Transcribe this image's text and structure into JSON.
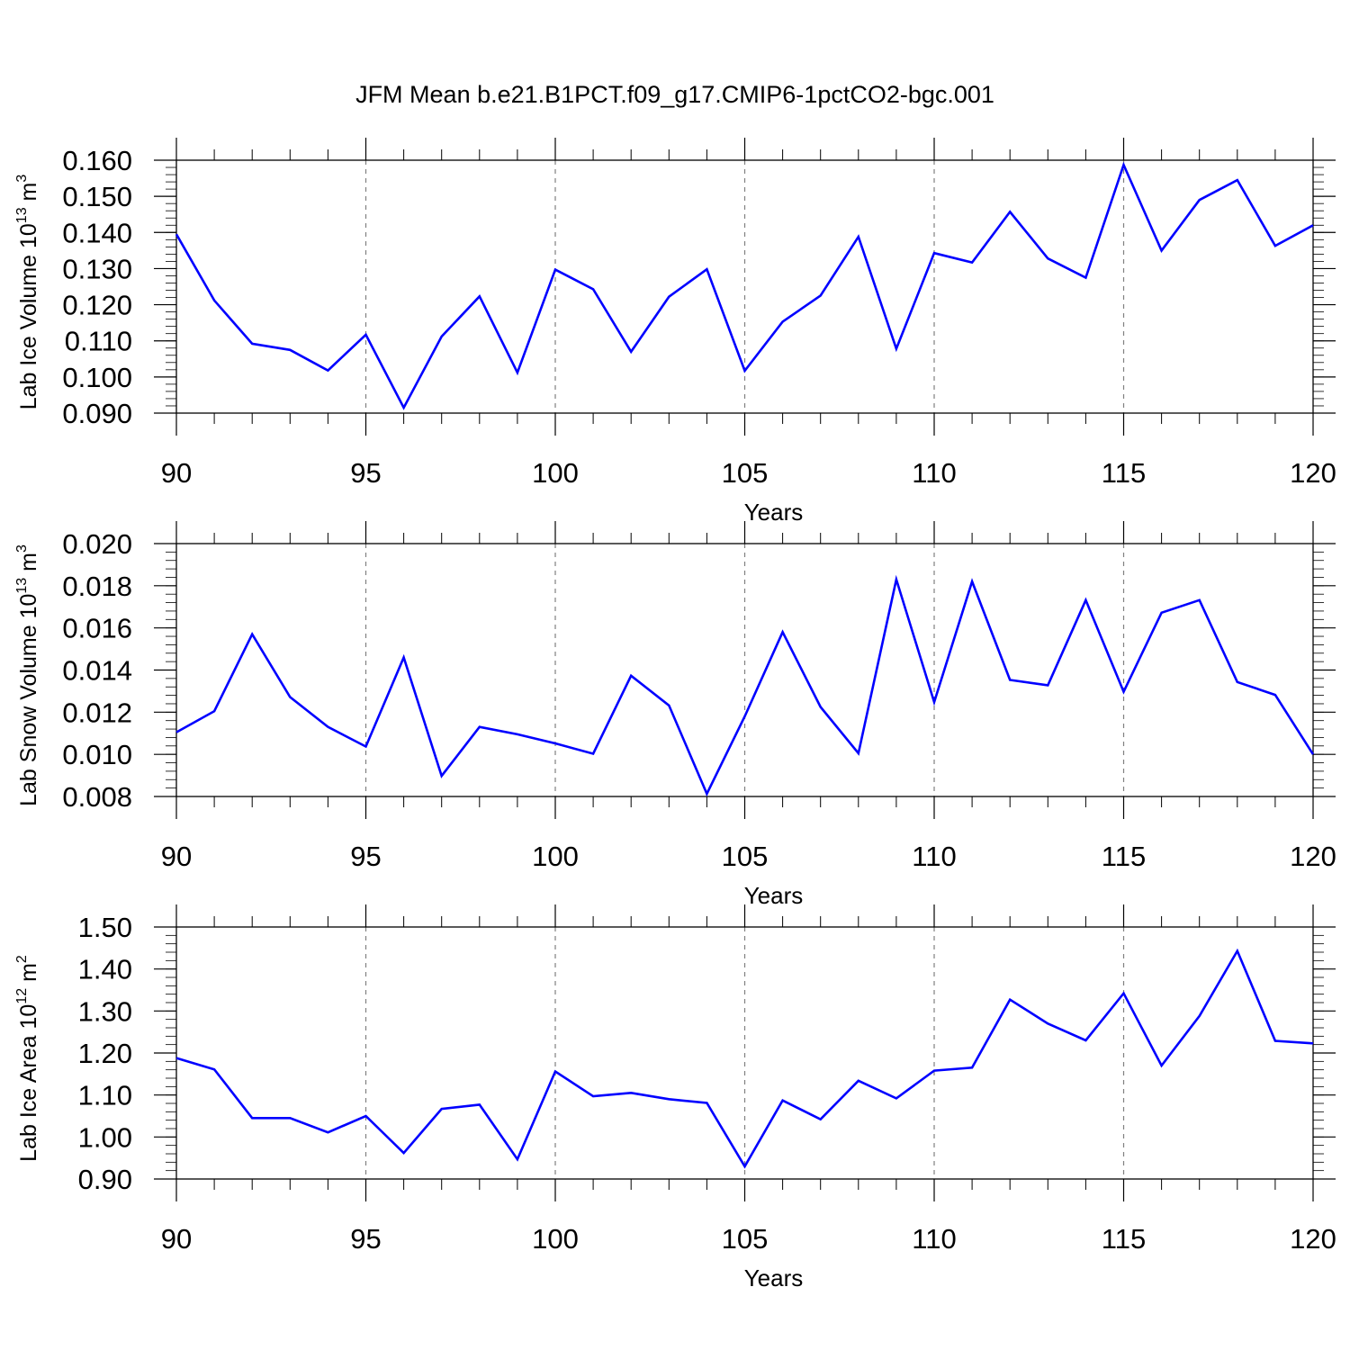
{
  "title": "JFM Mean b.e21.B1PCT.f09_g17.CMIP6-1pctCO2-bgc.001",
  "colors": {
    "series": "#0000ff",
    "axes": "#000000",
    "grid": "#808080",
    "background": "#ffffff"
  },
  "chart_data": [
    {
      "type": "line",
      "title": "",
      "xlabel": "Years",
      "ylabel": {
        "text": "Lab Ice Volume 10",
        "sup": "13",
        "unit": " m",
        "unit_sup": "3"
      },
      "xlim": [
        90,
        120
      ],
      "ylim": [
        0.09,
        0.16
      ],
      "x_ticks": [
        90,
        95,
        100,
        105,
        110,
        115,
        120
      ],
      "x_tick_labels": [
        "90",
        "95",
        "100",
        "105",
        "110",
        "115",
        "120"
      ],
      "y_ticks": [
        0.09,
        0.1,
        0.11,
        0.12,
        0.13,
        0.14,
        0.15,
        0.16
      ],
      "y_tick_labels": [
        "0.090",
        "0.100",
        "0.110",
        "0.120",
        "0.130",
        "0.140",
        "0.150",
        "0.160"
      ],
      "y_minor_step": 0.002,
      "grid": "vertical dashed at major x ticks",
      "x": [
        90,
        91,
        92,
        93,
        94,
        95,
        96,
        97,
        98,
        99,
        100,
        101,
        102,
        103,
        104,
        105,
        106,
        107,
        108,
        109,
        110,
        111,
        112,
        113,
        114,
        115,
        116,
        117,
        118,
        119,
        120
      ],
      "series": [
        {
          "name": "Lab Ice Volume",
          "values": [
            0.1395,
            0.1212,
            0.1092,
            0.1075,
            0.1018,
            0.1117,
            0.0915,
            0.1112,
            0.1223,
            0.1012,
            0.1297,
            0.1243,
            0.107,
            0.1222,
            0.1298,
            0.1017,
            0.1153,
            0.1225,
            0.1388,
            0.1078,
            0.1343,
            0.1317,
            0.1457,
            0.1328,
            0.1275,
            0.1587,
            0.135,
            0.149,
            0.1545,
            0.1363,
            0.142
          ]
        }
      ]
    },
    {
      "type": "line",
      "title": "",
      "xlabel": "Years",
      "ylabel": {
        "text": "Lab Snow Volume 10",
        "sup": "13",
        "unit": " m",
        "unit_sup": "3"
      },
      "xlim": [
        90,
        120
      ],
      "ylim": [
        0.008,
        0.02
      ],
      "x_ticks": [
        90,
        95,
        100,
        105,
        110,
        115,
        120
      ],
      "x_tick_labels": [
        "90",
        "95",
        "100",
        "105",
        "110",
        "115",
        "120"
      ],
      "y_ticks": [
        0.008,
        0.01,
        0.012,
        0.014,
        0.016,
        0.018,
        0.02
      ],
      "y_tick_labels": [
        "0.008",
        "0.010",
        "0.012",
        "0.014",
        "0.016",
        "0.018",
        "0.020"
      ],
      "y_minor_step": 0.0004,
      "grid": "vertical dashed at major x ticks",
      "x": [
        90,
        91,
        92,
        93,
        94,
        95,
        96,
        97,
        98,
        99,
        100,
        101,
        102,
        103,
        104,
        105,
        106,
        107,
        108,
        109,
        110,
        111,
        112,
        113,
        114,
        115,
        116,
        117,
        118,
        119,
        120
      ],
      "series": [
        {
          "name": "Lab Snow Volume",
          "values": [
            0.01105,
            0.01205,
            0.0157,
            0.01272,
            0.0113,
            0.01037,
            0.0146,
            0.00898,
            0.0113,
            0.01095,
            0.01052,
            0.01003,
            0.01373,
            0.01232,
            0.00813,
            0.0118,
            0.0158,
            0.01225,
            0.01005,
            0.0183,
            0.01248,
            0.0182,
            0.01353,
            0.01328,
            0.01732,
            0.01297,
            0.01672,
            0.01732,
            0.01343,
            0.01282,
            0.01
          ]
        }
      ]
    },
    {
      "type": "line",
      "title": "",
      "xlabel": "Years",
      "ylabel": {
        "text": "Lab Ice Area 10",
        "sup": "12",
        "unit": " m",
        "unit_sup": "2"
      },
      "xlim": [
        90,
        120
      ],
      "ylim": [
        0.9,
        1.5
      ],
      "x_ticks": [
        90,
        95,
        100,
        105,
        110,
        115,
        120
      ],
      "x_tick_labels": [
        "90",
        "95",
        "100",
        "105",
        "110",
        "115",
        "120"
      ],
      "y_ticks": [
        0.9,
        1.0,
        1.1,
        1.2,
        1.3,
        1.4,
        1.5
      ],
      "y_tick_labels": [
        "0.90",
        "1.00",
        "1.10",
        "1.20",
        "1.30",
        "1.40",
        "1.50"
      ],
      "y_minor_step": 0.02,
      "grid": "vertical dashed at major x ticks",
      "x": [
        90,
        91,
        92,
        93,
        94,
        95,
        96,
        97,
        98,
        99,
        100,
        101,
        102,
        103,
        104,
        105,
        106,
        107,
        108,
        109,
        110,
        111,
        112,
        113,
        114,
        115,
        116,
        117,
        118,
        119,
        120
      ],
      "series": [
        {
          "name": "Lab Ice Area",
          "values": [
            1.188,
            1.161,
            1.045,
            1.045,
            1.011,
            1.05,
            0.962,
            1.067,
            1.077,
            0.947,
            1.156,
            1.097,
            1.105,
            1.09,
            1.081,
            0.93,
            1.087,
            1.042,
            1.134,
            1.092,
            1.158,
            1.165,
            1.327,
            1.27,
            1.23,
            1.342,
            1.17,
            1.288,
            1.443,
            1.229,
            1.223
          ]
        }
      ]
    }
  ]
}
